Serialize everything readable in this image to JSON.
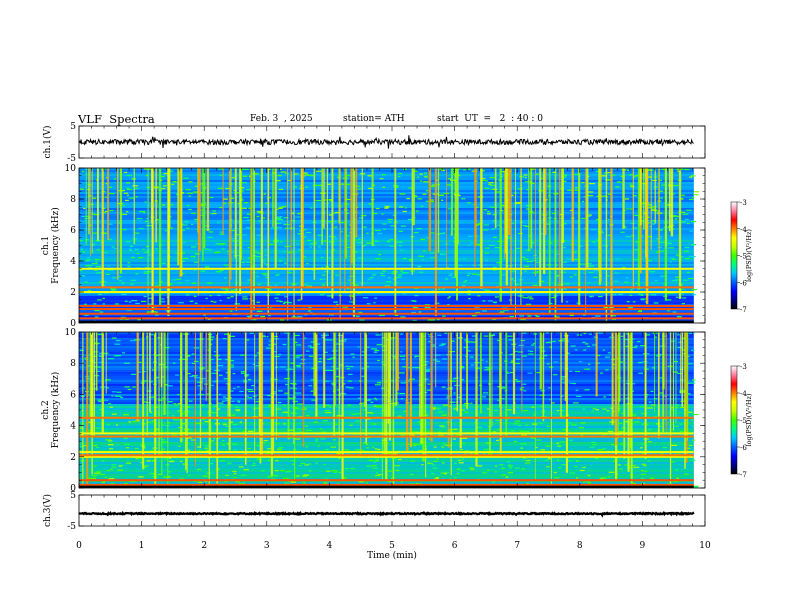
{
  "header": {
    "title": "VLF  Spectra",
    "date": "Feb. 3  , 2025",
    "station": "station= ATH",
    "start_ut": "start  UT  =   2  : 40 : 0"
  },
  "chart_data": {
    "type": "heatmap",
    "x_axis": {
      "label": "Time  (min)",
      "range": [
        0,
        10
      ],
      "ticks": [
        "0",
        "1",
        "2",
        "3",
        "4",
        "5",
        "6",
        "7",
        "8",
        "9",
        "10"
      ],
      "data_extent_min": 9.82
    },
    "panels": [
      {
        "id": "ch1-waveform",
        "type": "line",
        "ylabel": "ch.1(V)",
        "ylim": [
          -5,
          5
        ],
        "yticks": [
          "5",
          "-5"
        ],
        "baseline": 0,
        "color": "#000000"
      },
      {
        "id": "ch1-spectrogram",
        "type": "heatmap",
        "ylabel_channel": "ch.1",
        "ylabel": "Frequency  (kHz)",
        "ylim": [
          0,
          10
        ],
        "yticks": [
          "0",
          "2",
          "4",
          "6",
          "8",
          "10"
        ],
        "colorbar": {
          "label": "log(PSD)(V²/Hz)",
          "range": [
            -7,
            -3
          ],
          "ticks": [
            "-3",
            "-4",
            "-5",
            "-6",
            "-7"
          ]
        },
        "strong_bands_khz": [
          0.3,
          0.6,
          0.9,
          1.1,
          2.0,
          2.3,
          3.5
        ],
        "bright_floor_khz": 1.8
      },
      {
        "id": "ch2-spectrogram",
        "type": "heatmap",
        "ylabel_channel": "ch.2",
        "ylabel": "Frequency  (kHz)",
        "ylim": [
          0,
          10
        ],
        "yticks": [
          "0",
          "2",
          "4",
          "6",
          "8",
          "10"
        ],
        "colorbar": {
          "label": "log(PSD)(V²/Hz)",
          "range": [
            -7,
            -3
          ],
          "ticks": [
            "-3",
            "-4",
            "-5",
            "-6",
            "-7"
          ]
        },
        "strong_bands_khz": [
          0.2,
          0.5,
          2.0,
          2.1,
          2.3,
          3.3,
          3.5,
          4.5
        ],
        "bright_floor_khz": 5.5
      },
      {
        "id": "ch3-waveform",
        "type": "line",
        "ylabel": "ch.3(V)",
        "ylim": [
          -5,
          5
        ],
        "yticks": [
          "5",
          "-5"
        ],
        "baseline": -1,
        "color": "#000000"
      }
    ],
    "colormap": [
      "#000000",
      "#00008b",
      "#0000ff",
      "#0060ff",
      "#00c8ff",
      "#00ff80",
      "#40ff00",
      "#c8ff00",
      "#ffff00",
      "#ff8000",
      "#ff0000",
      "#ff80a0",
      "#ffffff"
    ]
  }
}
